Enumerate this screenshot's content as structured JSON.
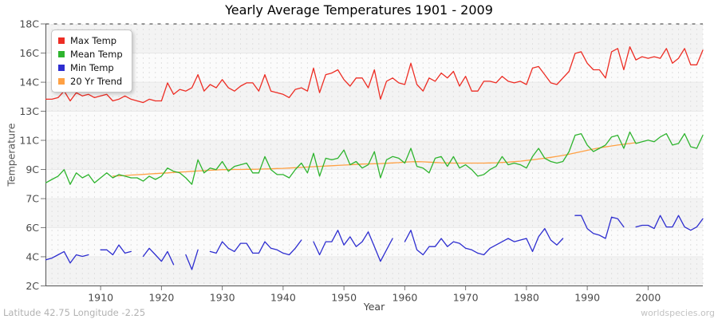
{
  "footer": {
    "location": "Latitude 42.75 Longitude -2.25",
    "website": "worldspecies.org"
  },
  "colors": {
    "axis": "#555555",
    "tick_label": "#4a4a4a",
    "band_gray": "#f3f3f3",
    "band_light": "#fbfbfb",
    "grid_vertical": "#e0e0e0",
    "grid_horizontal": "#e8e8e8",
    "top_dashed_line": "#333333",
    "legend_border": "#c4c4c4"
  },
  "chart_data": {
    "type": "line",
    "title": "Yearly Average Temperatures 1901 - 2009",
    "xlabel": "Year",
    "ylabel": "Temperature",
    "start_year": 1901,
    "end_year": 2009,
    "xlim": [
      1901,
      2009
    ],
    "ylim": [
      2,
      18
    ],
    "grid": true,
    "legend_position": "top-left",
    "x_ticks": [
      1910,
      1920,
      1930,
      1940,
      1950,
      1960,
      1970,
      1980,
      1990,
      2000
    ],
    "y_ticks": [
      {
        "label": "18C",
        "value": 18
      },
      {
        "label": "16C",
        "value": 16.22
      },
      {
        "label": "14C",
        "value": 14.44
      },
      {
        "label": "13C",
        "value": 12.67
      },
      {
        "label": "11C",
        "value": 10.89
      },
      {
        "label": "9C",
        "value": 9.11
      },
      {
        "label": "7C",
        "value": 7.33
      },
      {
        "label": "6C",
        "value": 5.56
      },
      {
        "label": "4C",
        "value": 3.78
      },
      {
        "label": "2C",
        "value": 2
      }
    ],
    "series": [
      {
        "name": "Max Temp",
        "color": "#ed2d24",
        "values": [
          13.4,
          13.4,
          13.5,
          13.9,
          13.3,
          13.8,
          13.6,
          13.7,
          13.5,
          13.6,
          13.7,
          13.3,
          13.4,
          13.6,
          13.4,
          13.3,
          13.2,
          13.4,
          13.3,
          13.3,
          14.4,
          13.7,
          14.0,
          13.9,
          14.1,
          14.9,
          13.9,
          14.3,
          14.1,
          14.6,
          14.1,
          13.9,
          14.2,
          14.4,
          14.4,
          13.9,
          14.9,
          13.9,
          13.8,
          13.7,
          13.5,
          14.0,
          14.1,
          13.9,
          15.3,
          13.8,
          14.9,
          15.0,
          15.2,
          14.6,
          14.2,
          14.7,
          14.7,
          14.1,
          15.2,
          13.4,
          14.5,
          14.7,
          14.4,
          14.3,
          15.6,
          14.3,
          13.9,
          14.7,
          14.5,
          15.0,
          14.7,
          15.1,
          14.2,
          14.8,
          13.9,
          13.9,
          14.5,
          14.5,
          14.4,
          14.8,
          14.5,
          14.4,
          14.5,
          14.3,
          15.3,
          15.4,
          14.9,
          14.4,
          14.3,
          14.7,
          15.1,
          16.2,
          16.3,
          15.6,
          15.2,
          15.2,
          14.7,
          16.3,
          16.5,
          15.2,
          16.6,
          15.8,
          16.0,
          15.9,
          16.0,
          15.9,
          16.5,
          15.6,
          15.9,
          16.5,
          15.5,
          15.5,
          16.4
        ]
      },
      {
        "name": "Mean Temp",
        "color": "#2eb42e",
        "values": [
          8.3,
          8.5,
          8.7,
          9.1,
          8.2,
          8.9,
          8.6,
          8.8,
          8.3,
          8.6,
          8.9,
          8.6,
          8.8,
          8.7,
          8.6,
          8.6,
          8.4,
          8.7,
          8.5,
          8.7,
          9.2,
          9.0,
          8.9,
          8.6,
          8.2,
          9.7,
          8.9,
          9.2,
          9.1,
          9.6,
          9.0,
          9.3,
          9.4,
          9.5,
          8.9,
          8.9,
          9.9,
          9.1,
          8.8,
          8.8,
          8.6,
          9.1,
          9.5,
          8.9,
          10.1,
          8.7,
          9.8,
          9.7,
          9.8,
          10.3,
          9.4,
          9.6,
          9.2,
          9.4,
          10.2,
          8.6,
          9.7,
          9.9,
          9.8,
          9.5,
          10.4,
          9.3,
          9.2,
          8.9,
          9.8,
          9.9,
          9.3,
          9.9,
          9.2,
          9.4,
          9.1,
          8.7,
          8.8,
          9.1,
          9.3,
          9.9,
          9.4,
          9.5,
          9.4,
          9.2,
          9.9,
          10.4,
          9.8,
          9.6,
          9.5,
          9.6,
          10.2,
          11.2,
          11.3,
          10.6,
          10.2,
          10.4,
          10.6,
          11.1,
          11.2,
          10.4,
          11.4,
          10.7,
          10.8,
          10.9,
          10.8,
          11.1,
          11.3,
          10.6,
          10.7,
          11.3,
          10.5,
          10.4,
          11.2
        ]
      },
      {
        "name": "Min Temp",
        "color": "#2e2ed0",
        "values": [
          3.6,
          3.7,
          3.9,
          4.1,
          3.4,
          3.9,
          3.8,
          3.9,
          null,
          4.2,
          4.2,
          3.9,
          4.5,
          4.0,
          4.1,
          null,
          3.8,
          4.3,
          3.9,
          3.5,
          4.1,
          3.3,
          null,
          3.9,
          3.0,
          4.2,
          null,
          4.1,
          4.0,
          4.7,
          4.3,
          4.1,
          4.6,
          4.6,
          4.0,
          4.0,
          4.7,
          4.3,
          4.2,
          4.0,
          3.9,
          4.3,
          4.8,
          null,
          4.7,
          3.9,
          4.7,
          4.7,
          5.4,
          4.5,
          5.0,
          4.4,
          4.7,
          5.3,
          4.4,
          3.5,
          4.2,
          4.9,
          null,
          4.7,
          5.4,
          4.2,
          3.9,
          4.4,
          4.4,
          4.9,
          4.4,
          4.7,
          4.6,
          4.3,
          4.2,
          4.0,
          3.9,
          4.3,
          4.5,
          4.7,
          4.9,
          4.7,
          4.8,
          4.9,
          4.1,
          5.0,
          5.5,
          4.8,
          4.5,
          4.9,
          null,
          6.3,
          6.3,
          5.5,
          5.2,
          5.1,
          4.9,
          6.2,
          6.1,
          5.6,
          null,
          5.6,
          5.7,
          5.7,
          5.5,
          6.3,
          5.6,
          5.6,
          6.3,
          5.6,
          5.4,
          5.6,
          6.1
        ]
      },
      {
        "name": "20 Yr Trend",
        "color": "#ffa144",
        "values": [
          null,
          null,
          null,
          null,
          null,
          null,
          null,
          null,
          null,
          null,
          null,
          8.7,
          8.72,
          8.74,
          8.77,
          8.79,
          8.81,
          8.84,
          8.86,
          8.88,
          8.9,
          8.93,
          8.95,
          8.97,
          9.0,
          9.02,
          9.04,
          9.06,
          9.08,
          9.1,
          9.1,
          9.11,
          9.11,
          9.12,
          9.12,
          9.13,
          9.14,
          9.15,
          9.17,
          9.18,
          9.2,
          9.22,
          9.24,
          9.26,
          9.28,
          9.3,
          9.32,
          9.34,
          9.36,
          9.38,
          9.4,
          9.42,
          9.44,
          9.45,
          9.46,
          9.47,
          9.49,
          9.51,
          9.53,
          9.56,
          9.58,
          9.59,
          9.58,
          9.56,
          9.54,
          9.52,
          9.51,
          9.5,
          9.5,
          9.5,
          9.5,
          9.5,
          9.5,
          9.51,
          9.52,
          9.54,
          9.56,
          9.59,
          9.62,
          9.66,
          9.7,
          9.75,
          9.8,
          9.85,
          9.91,
          9.97,
          10.04,
          10.12,
          10.2,
          10.28,
          10.36,
          10.43,
          10.49,
          10.55,
          10.6,
          10.65,
          10.7,
          10.75,
          null,
          null,
          null,
          null,
          null,
          null,
          null,
          null,
          null,
          null,
          null
        ]
      }
    ]
  }
}
